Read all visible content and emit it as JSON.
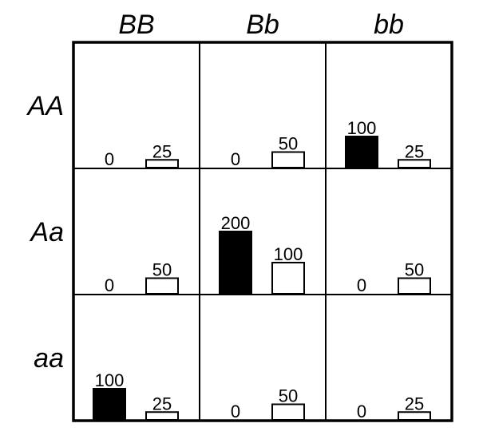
{
  "chart_data": {
    "type": "bar",
    "columns": [
      "BB",
      "Bb",
      "bb"
    ],
    "rows": [
      "AA",
      "Aa",
      "aa"
    ],
    "cells": [
      [
        [
          0,
          25
        ],
        [
          0,
          50
        ],
        [
          100,
          25
        ]
      ],
      [
        [
          0,
          50
        ],
        [
          200,
          100
        ],
        [
          0,
          50
        ]
      ],
      [
        [
          100,
          25
        ],
        [
          0,
          50
        ],
        [
          0,
          25
        ]
      ]
    ],
    "colors": [
      "#000000",
      "#ffffff"
    ],
    "ylim": [
      0,
      400
    ]
  }
}
